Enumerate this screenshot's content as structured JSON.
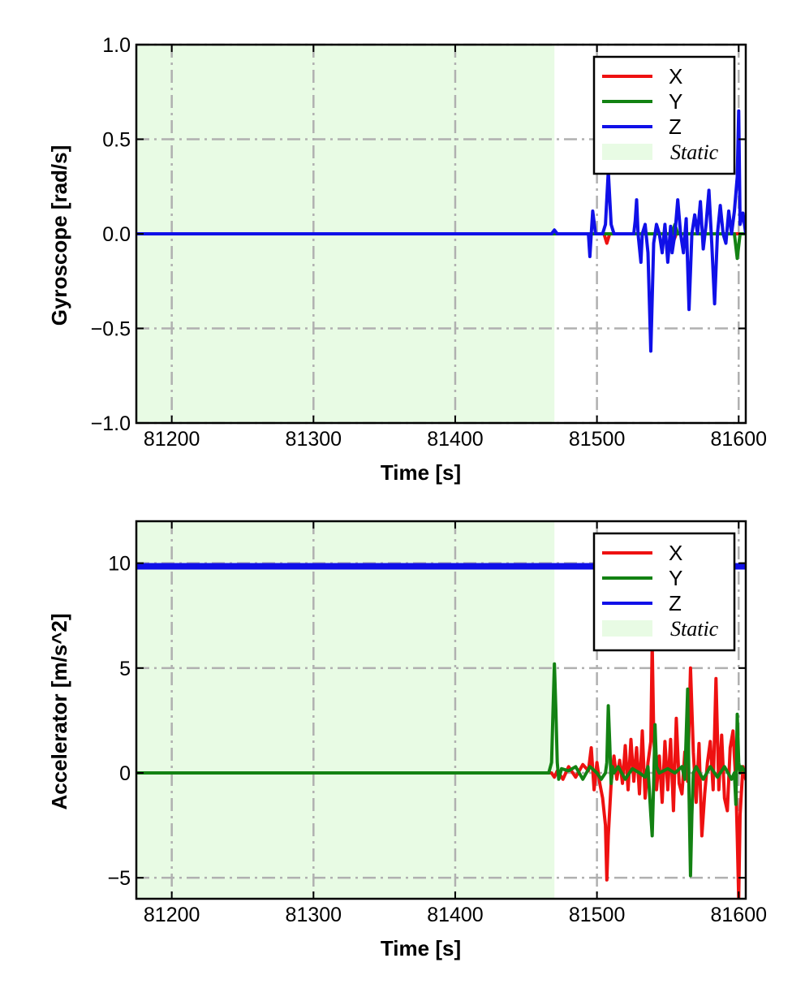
{
  "chart_data": [
    {
      "type": "line",
      "xlabel": "Time [s]",
      "ylabel": "Gyroscope [rad/s]",
      "xlim": [
        81175,
        81605
      ],
      "ylim": [
        -1.0,
        1.0
      ],
      "xticks": [
        81200,
        81300,
        81400,
        81500,
        81600
      ],
      "xtick_labels": [
        "81200",
        "81300",
        "81400",
        "81500",
        "81600"
      ],
      "yticks": [
        1.0,
        0.5,
        0.0,
        -0.5,
        -1.0
      ],
      "ytick_labels": [
        "1.0",
        "0.5",
        "0.0",
        "−0.5",
        "−1.0"
      ],
      "grid": true,
      "legend_position": "top-right",
      "static_region": {
        "label": "Static",
        "x": [
          81175,
          81470
        ],
        "color": "#e8fbe4"
      },
      "series": [
        {
          "name": "X",
          "color": "#ee1111",
          "x": [
            81175,
            81470,
            81494,
            81500,
            81505,
            81507,
            81509,
            81515,
            81525,
            81540,
            81552,
            81554,
            81556,
            81570,
            81590,
            81605
          ],
          "y": [
            0.0,
            0.0,
            0.0,
            0.0,
            0.0,
            -0.05,
            0.0,
            0.0,
            0.0,
            0.0,
            0.0,
            -0.04,
            0.0,
            0.0,
            0.0,
            0.0
          ]
        },
        {
          "name": "Y",
          "color": "#138213",
          "x": [
            81175,
            81470,
            81540,
            81553,
            81555,
            81557,
            81580,
            81597,
            81599,
            81601,
            81605
          ],
          "y": [
            0.0,
            0.0,
            0.0,
            0.0,
            0.05,
            0.0,
            0.0,
            0.0,
            -0.13,
            0.0,
            0.0
          ]
        },
        {
          "name": "Z",
          "color": "#1010e8",
          "x": [
            81175,
            81468,
            81470,
            81472,
            81494,
            81495,
            81496,
            81497,
            81499,
            81501,
            81504,
            81506,
            81508,
            81510,
            81512,
            81515,
            81520,
            81526,
            81527,
            81528,
            81529,
            81531,
            81532,
            81534,
            81536,
            81538,
            81540,
            81542,
            81544,
            81546,
            81548,
            81550,
            81552,
            81553,
            81555,
            81557,
            81559,
            81561,
            81563,
            81565,
            81567,
            81569,
            81571,
            81573,
            81575,
            81577,
            81579,
            81581,
            81583,
            81585,
            81587,
            81589,
            81591,
            81593,
            81595,
            81597,
            81599,
            81600,
            81601,
            81603,
            81605
          ],
          "y": [
            0.0,
            0.0,
            0.02,
            0.0,
            0.0,
            -0.12,
            0.0,
            0.12,
            0.0,
            0.0,
            0.0,
            0.05,
            0.33,
            0.05,
            0.0,
            0.0,
            0.0,
            0.0,
            0.07,
            0.18,
            0.0,
            -0.15,
            0.0,
            0.05,
            -0.1,
            -0.62,
            -0.05,
            0.05,
            0.0,
            -0.1,
            0.05,
            -0.15,
            0.04,
            -0.1,
            0.0,
            0.18,
            0.0,
            -0.1,
            0.08,
            -0.4,
            0.0,
            0.1,
            0.0,
            0.17,
            -0.08,
            0.05,
            0.23,
            -0.05,
            -0.37,
            0.0,
            0.15,
            0.0,
            -0.05,
            0.12,
            0.0,
            0.12,
            0.3,
            0.65,
            0.05,
            0.11,
            0.0
          ]
        }
      ]
    },
    {
      "type": "line",
      "xlabel": "Time [s]",
      "ylabel": "Accelerator [m/s^2]",
      "xlim": [
        81175,
        81605
      ],
      "ylim": [
        -6.0,
        12.0
      ],
      "xticks": [
        81200,
        81300,
        81400,
        81500,
        81600
      ],
      "xtick_labels": [
        "81200",
        "81300",
        "81400",
        "81500",
        "81600"
      ],
      "yticks": [
        10,
        5,
        0,
        -5
      ],
      "ytick_labels": [
        "10",
        "5",
        "0",
        "−5"
      ],
      "grid": true,
      "legend_position": "top-right",
      "static_region": {
        "label": "Static",
        "x": [
          81175,
          81470
        ],
        "color": "#e8fbe4"
      },
      "series": [
        {
          "name": "X",
          "color": "#ee1111",
          "x": [
            81175,
            81468,
            81470,
            81472,
            81476,
            81480,
            81485,
            81490,
            81494,
            81496,
            81498,
            81500,
            81502,
            81504,
            81506,
            81507,
            81508,
            81510,
            81512,
            81514,
            81516,
            81518,
            81520,
            81522,
            81524,
            81526,
            81528,
            81530,
            81532,
            81534,
            81536,
            81538,
            81539,
            81540,
            81541,
            81542,
            81544,
            81546,
            81548,
            81550,
            81552,
            81554,
            81556,
            81558,
            81560,
            81562,
            81564,
            81566,
            81568,
            81570,
            81572,
            81574,
            81576,
            81578,
            81580,
            81582,
            81584,
            81586,
            81588,
            81590,
            81592,
            81594,
            81596,
            81598,
            81599,
            81600,
            81601,
            81603,
            81605
          ],
          "y": [
            0.0,
            0.0,
            -0.2,
            0.1,
            -0.3,
            0.3,
            -0.2,
            0.4,
            0.1,
            1.2,
            -0.8,
            0.5,
            -0.5,
            -1.2,
            -2.5,
            -5.1,
            -3.0,
            -0.5,
            0.8,
            -0.3,
            0.6,
            -0.5,
            1.3,
            -0.8,
            1.6,
            -0.4,
            1.2,
            -1.0,
            2.0,
            -1.2,
            0.5,
            1.5,
            6.2,
            2.0,
            0.3,
            -0.8,
            0.8,
            -1.4,
            1.5,
            -0.8,
            1.6,
            -1.8,
            2.6,
            -0.5,
            -1.0,
            1.0,
            -0.4,
            5.0,
            1.0,
            -1.4,
            1.4,
            -3.0,
            -1.0,
            0.5,
            1.5,
            -0.8,
            4.5,
            -0.8,
            1.8,
            -1.2,
            -1.8,
            1.2,
            2.0,
            -0.5,
            -3.0,
            -6.0,
            -2.0,
            0.3,
            -0.3
          ]
        },
        {
          "name": "Y",
          "color": "#138213",
          "x": [
            81175,
            81466,
            81468,
            81469,
            81470,
            81471,
            81472,
            81473,
            81475,
            81480,
            81485,
            81490,
            81495,
            81500,
            81503,
            81506,
            81507,
            81508,
            81509,
            81510,
            81511,
            81512,
            81515,
            81520,
            81525,
            81530,
            81534,
            81536,
            81538,
            81539,
            81540,
            81541,
            81542,
            81544,
            81550,
            81555,
            81560,
            81562,
            81564,
            81565,
            81566,
            81567,
            81568,
            81570,
            81575,
            81580,
            81585,
            81590,
            81595,
            81597,
            81598,
            81599,
            81600,
            81601,
            81602,
            81605
          ],
          "y": [
            0.0,
            0.0,
            0.5,
            3.0,
            5.2,
            3.0,
            0.5,
            -0.3,
            0.2,
            0.1,
            0.3,
            -0.3,
            0.3,
            0.0,
            -0.3,
            0.0,
            0.5,
            3.2,
            1.5,
            -0.5,
            0.3,
            0.0,
            0.3,
            -0.3,
            0.2,
            0.0,
            -0.2,
            0.3,
            -2.0,
            -3.0,
            -0.5,
            2.3,
            0.3,
            0.0,
            0.2,
            0.0,
            0.3,
            -0.3,
            4.0,
            -1.0,
            -4.9,
            -2.0,
            0.0,
            0.3,
            -0.3,
            0.3,
            -0.2,
            0.3,
            -0.3,
            0.0,
            -1.5,
            2.8,
            0.5,
            0.0,
            0.3,
            0.0
          ]
        },
        {
          "name": "Z",
          "color": "#1010e8",
          "x": [
            81175,
            81605
          ],
          "y": [
            9.85,
            9.85
          ]
        }
      ]
    }
  ]
}
